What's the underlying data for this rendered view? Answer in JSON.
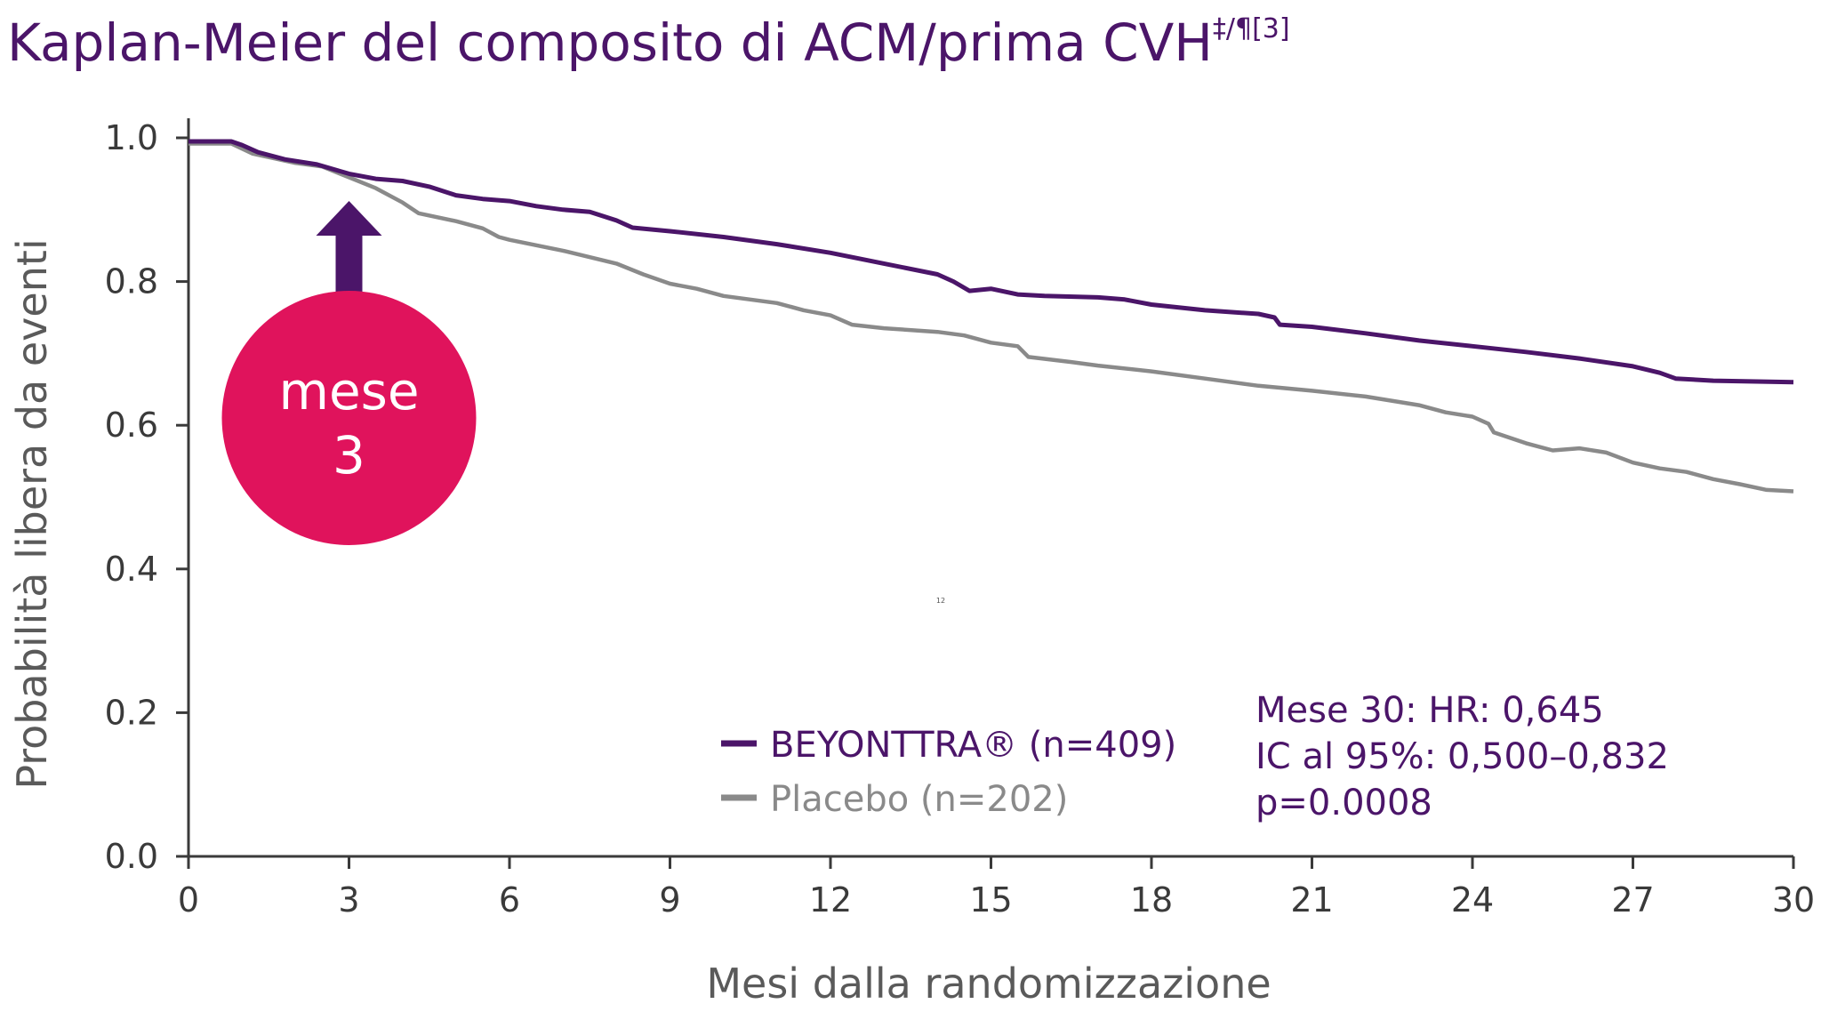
{
  "title": {
    "main": "Kaplan-Meier del composito di ACM/prima CVH",
    "superscript": "‡/¶[3]"
  },
  "callout": {
    "line1": "mese",
    "line2": "3",
    "month": 3,
    "color": "#e0135c",
    "arrow_color": "#4b1569"
  },
  "stats": {
    "line1": "Mese 30: HR: 0,645",
    "line2": "IC al 95%: 0,500–0,832",
    "line3": "p=0.0008"
  },
  "stray_label": "12",
  "chart_data": {
    "type": "line",
    "title": "Kaplan-Meier del composito di ACM/prima CVH‡/¶[3]",
    "xlabel": "Mesi dalla randomizzazione",
    "ylabel": "Probabilità libera da eventi",
    "xlim": [
      0,
      30
    ],
    "ylim": [
      0,
      1
    ],
    "x_ticks": [
      0,
      3,
      6,
      9,
      12,
      15,
      18,
      21,
      24,
      27,
      30
    ],
    "x_tick_labels": [
      "0",
      "3",
      "6",
      "9",
      "12",
      "15",
      "18",
      "21",
      "24",
      "27",
      "30"
    ],
    "y_ticks": [
      0,
      0.2,
      0.4,
      0.6,
      0.8,
      1.0
    ],
    "y_tick_labels": [
      "0.0",
      "0.2",
      "0.4",
      "0.6",
      "0.8",
      "1.0"
    ],
    "grid": false,
    "legend_position": "bottom-center",
    "series": [
      {
        "name": "BEYONTTRA® (n=409)",
        "color": "#4b1569",
        "points": [
          [
            0,
            0.995
          ],
          [
            0.8,
            0.995
          ],
          [
            1.0,
            0.99
          ],
          [
            1.3,
            0.98
          ],
          [
            1.8,
            0.97
          ],
          [
            2.4,
            0.963
          ],
          [
            3.0,
            0.95
          ],
          [
            3.5,
            0.943
          ],
          [
            4.0,
            0.94
          ],
          [
            4.5,
            0.932
          ],
          [
            5.0,
            0.92
          ],
          [
            5.5,
            0.915
          ],
          [
            6.0,
            0.912
          ],
          [
            6.5,
            0.905
          ],
          [
            7.0,
            0.9
          ],
          [
            7.5,
            0.897
          ],
          [
            8.0,
            0.885
          ],
          [
            8.3,
            0.875
          ],
          [
            9.0,
            0.87
          ],
          [
            10.0,
            0.862
          ],
          [
            11.0,
            0.852
          ],
          [
            12.0,
            0.84
          ],
          [
            13.0,
            0.825
          ],
          [
            14.0,
            0.81
          ],
          [
            14.3,
            0.8
          ],
          [
            14.6,
            0.787
          ],
          [
            15.0,
            0.79
          ],
          [
            15.5,
            0.782
          ],
          [
            16.0,
            0.78
          ],
          [
            17.0,
            0.778
          ],
          [
            17.5,
            0.775
          ],
          [
            18.0,
            0.768
          ],
          [
            19.0,
            0.76
          ],
          [
            20.0,
            0.755
          ],
          [
            20.3,
            0.75
          ],
          [
            20.4,
            0.74
          ],
          [
            21.0,
            0.737
          ],
          [
            22.0,
            0.728
          ],
          [
            23.0,
            0.718
          ],
          [
            24.0,
            0.71
          ],
          [
            25.0,
            0.702
          ],
          [
            26.0,
            0.693
          ],
          [
            27.0,
            0.682
          ],
          [
            27.5,
            0.673
          ],
          [
            27.8,
            0.665
          ],
          [
            28.5,
            0.662
          ],
          [
            30.0,
            0.66
          ]
        ]
      },
      {
        "name": "Placebo (n=202)",
        "color": "#8a8a8a",
        "points": [
          [
            0,
            0.992
          ],
          [
            0.8,
            0.992
          ],
          [
            1.2,
            0.978
          ],
          [
            2.0,
            0.965
          ],
          [
            2.5,
            0.96
          ],
          [
            3.0,
            0.945
          ],
          [
            3.5,
            0.93
          ],
          [
            4.0,
            0.91
          ],
          [
            4.3,
            0.895
          ],
          [
            5.0,
            0.884
          ],
          [
            5.5,
            0.874
          ],
          [
            5.8,
            0.862
          ],
          [
            6.0,
            0.858
          ],
          [
            7.0,
            0.843
          ],
          [
            8.0,
            0.825
          ],
          [
            8.5,
            0.81
          ],
          [
            9.0,
            0.797
          ],
          [
            9.5,
            0.79
          ],
          [
            10.0,
            0.78
          ],
          [
            11.0,
            0.77
          ],
          [
            11.5,
            0.76
          ],
          [
            12.0,
            0.753
          ],
          [
            12.4,
            0.74
          ],
          [
            13.0,
            0.735
          ],
          [
            14.0,
            0.73
          ],
          [
            14.5,
            0.725
          ],
          [
            15.0,
            0.715
          ],
          [
            15.5,
            0.71
          ],
          [
            15.7,
            0.695
          ],
          [
            16.5,
            0.688
          ],
          [
            17.0,
            0.683
          ],
          [
            18.0,
            0.675
          ],
          [
            19.0,
            0.665
          ],
          [
            20.0,
            0.655
          ],
          [
            21.0,
            0.648
          ],
          [
            22.0,
            0.64
          ],
          [
            23.0,
            0.628
          ],
          [
            23.5,
            0.618
          ],
          [
            24.0,
            0.612
          ],
          [
            24.3,
            0.602
          ],
          [
            24.4,
            0.59
          ],
          [
            25.0,
            0.575
          ],
          [
            25.5,
            0.565
          ],
          [
            26.0,
            0.568
          ],
          [
            26.5,
            0.562
          ],
          [
            27.0,
            0.548
          ],
          [
            27.5,
            0.54
          ],
          [
            28.0,
            0.535
          ],
          [
            28.5,
            0.525
          ],
          [
            29.0,
            0.518
          ],
          [
            29.5,
            0.51
          ],
          [
            30.0,
            0.508
          ]
        ]
      }
    ]
  }
}
